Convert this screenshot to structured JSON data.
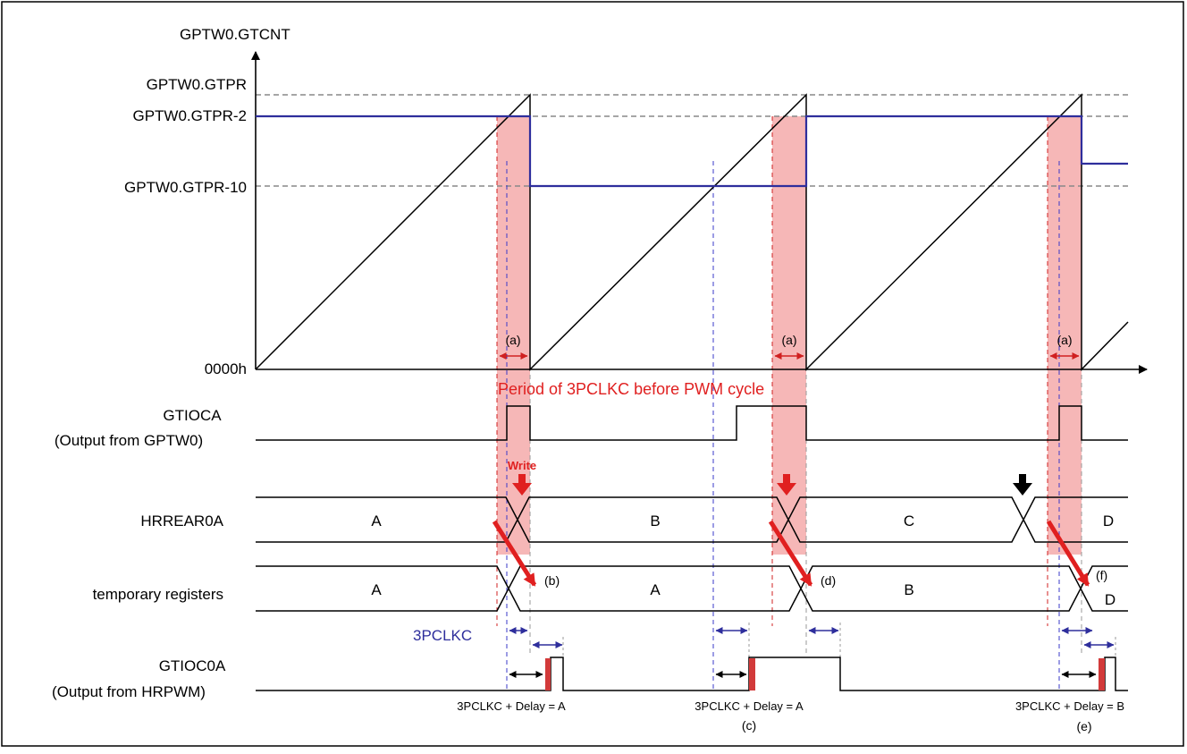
{
  "diagram": {
    "y_axis_title": "GPTW0.GTCNT",
    "levels": {
      "gtpr": "GPTW0.GTPR",
      "gtpr_minus_2": "GPTW0.GTPR-2",
      "gtpr_minus_10": "GPTW0.GTPR-10",
      "zero": "0000h"
    },
    "period_note": "Period of 3PCLKC before PWM cycle",
    "interval_marker": "(a)",
    "signals": {
      "gtioca": {
        "line1": "GTIOCA",
        "line2": "(Output from GPTW0)"
      },
      "hrrear": {
        "label": "HRREAR0A",
        "values": [
          "A",
          "B",
          "C",
          "D"
        ]
      },
      "temp": {
        "label": "temporary registers",
        "values": [
          "A",
          "A",
          "B",
          "D"
        ]
      },
      "gtioc0a": {
        "line1": "GTIOC0A",
        "line2": "(Output from HRPWM)"
      }
    },
    "write_label": "Write",
    "points": [
      "(b)",
      "(c)",
      "(d)",
      "(e)",
      "(f)"
    ],
    "pclk_label": "3PCLKC",
    "delays": [
      "3PCLKC + Delay = A",
      "3PCLKC + Delay = A",
      "3PCLKC + Delay = B"
    ],
    "colors": {
      "highlight": "#f6b7b7",
      "compare_line": "#2e2e9c",
      "dashed_red": "#d02020",
      "dashed_blue": "#3a3ac8",
      "arrow_red": "#e02020",
      "delay_fill": "#d23a3a"
    }
  }
}
